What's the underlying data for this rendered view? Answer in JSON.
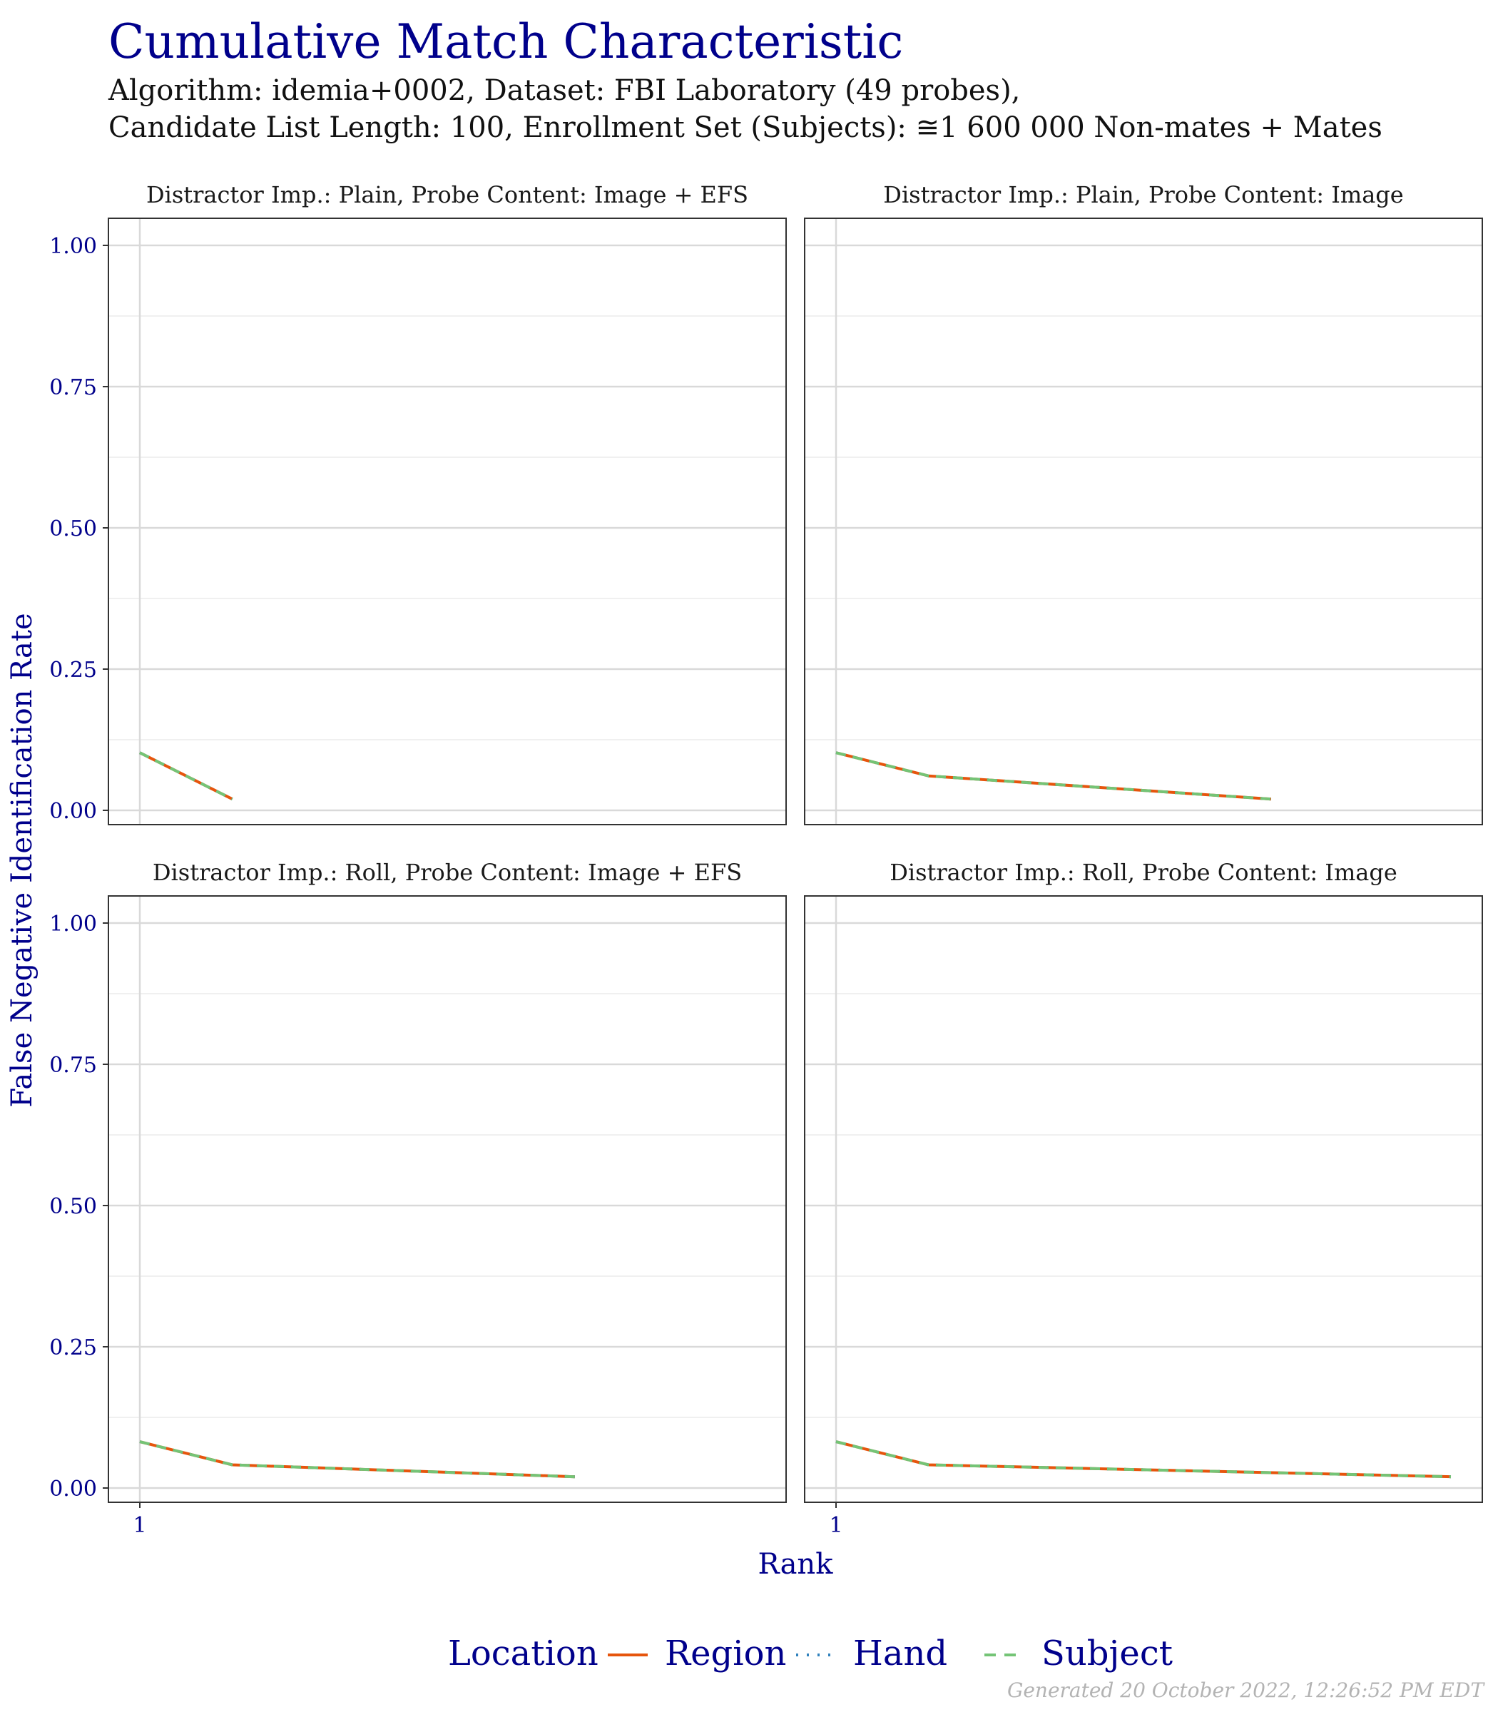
{
  "title": "Cumulative Match Characteristic",
  "subtitle_line1": "Algorithm: idemia+0002, Dataset: FBI Laboratory (49 probes),",
  "subtitle_line2": "Candidate List Length: 100, Enrollment Set (Subjects): ≅1 600 000 Non-mates + Mates",
  "footer": "Generated 20 October 2022, 12:26:52 PM EDT",
  "colors": {
    "text_accent": "#00008b",
    "region": "#e6550d",
    "hand": "#3182bd",
    "subject": "#74c476",
    "grid": "#d9d9d9",
    "grid_minor": "#ececec",
    "panel_border": "#333333"
  },
  "legend": {
    "title": "Location",
    "items": [
      {
        "label": "Region",
        "style": "solid",
        "color": "#e6550d"
      },
      {
        "label": "Hand",
        "style": "dotted",
        "color": "#3182bd"
      },
      {
        "label": "Subject",
        "style": "dashed",
        "color": "#74c476"
      }
    ]
  },
  "chart_data": {
    "type": "line",
    "xlabel": "Rank",
    "ylabel": "False Negative Identification Rate",
    "x_scale": "log",
    "x_ticks": [
      1
    ],
    "ylim": [
      0,
      1
    ],
    "y_ticks": [
      "0.00",
      "0.25",
      "0.50",
      "0.75",
      "1.00"
    ],
    "grid": true,
    "legend_position": "bottom",
    "panels": [
      {
        "title": "Distractor Imp.: Plain, Probe Content: Image + EFS",
        "x": [
          1,
          2
        ],
        "series": [
          {
            "name": "Region",
            "values": [
              0.102,
              0.02
            ]
          },
          {
            "name": "Hand",
            "values": [
              0.102,
              0.02
            ]
          },
          {
            "name": "Subject",
            "values": [
              0.102,
              0.02
            ]
          }
        ]
      },
      {
        "title": "Distractor Imp.: Plain, Probe Content: Image",
        "x": [
          1,
          2,
          26
        ],
        "series": [
          {
            "name": "Region",
            "values": [
              0.102,
              0.061,
              0.02
            ]
          },
          {
            "name": "Hand",
            "values": [
              0.102,
              0.061,
              0.02
            ]
          },
          {
            "name": "Subject",
            "values": [
              0.102,
              0.061,
              0.02
            ]
          }
        ]
      },
      {
        "title": "Distractor Imp.: Roll, Probe Content: Image + EFS",
        "x": [
          1,
          2,
          26
        ],
        "series": [
          {
            "name": "Region",
            "values": [
              0.082,
              0.041,
              0.02
            ]
          },
          {
            "name": "Hand",
            "values": [
              0.082,
              0.041,
              0.02
            ]
          },
          {
            "name": "Subject",
            "values": [
              0.082,
              0.041,
              0.02
            ]
          }
        ]
      },
      {
        "title": "Distractor Imp.: Roll, Probe Content: Image",
        "x": [
          1,
          2,
          100
        ],
        "series": [
          {
            "name": "Region",
            "values": [
              0.082,
              0.041,
              0.02
            ]
          },
          {
            "name": "Hand",
            "values": [
              0.082,
              0.041,
              0.02
            ]
          },
          {
            "name": "Subject",
            "values": [
              0.082,
              0.041,
              0.02
            ]
          }
        ]
      }
    ]
  }
}
